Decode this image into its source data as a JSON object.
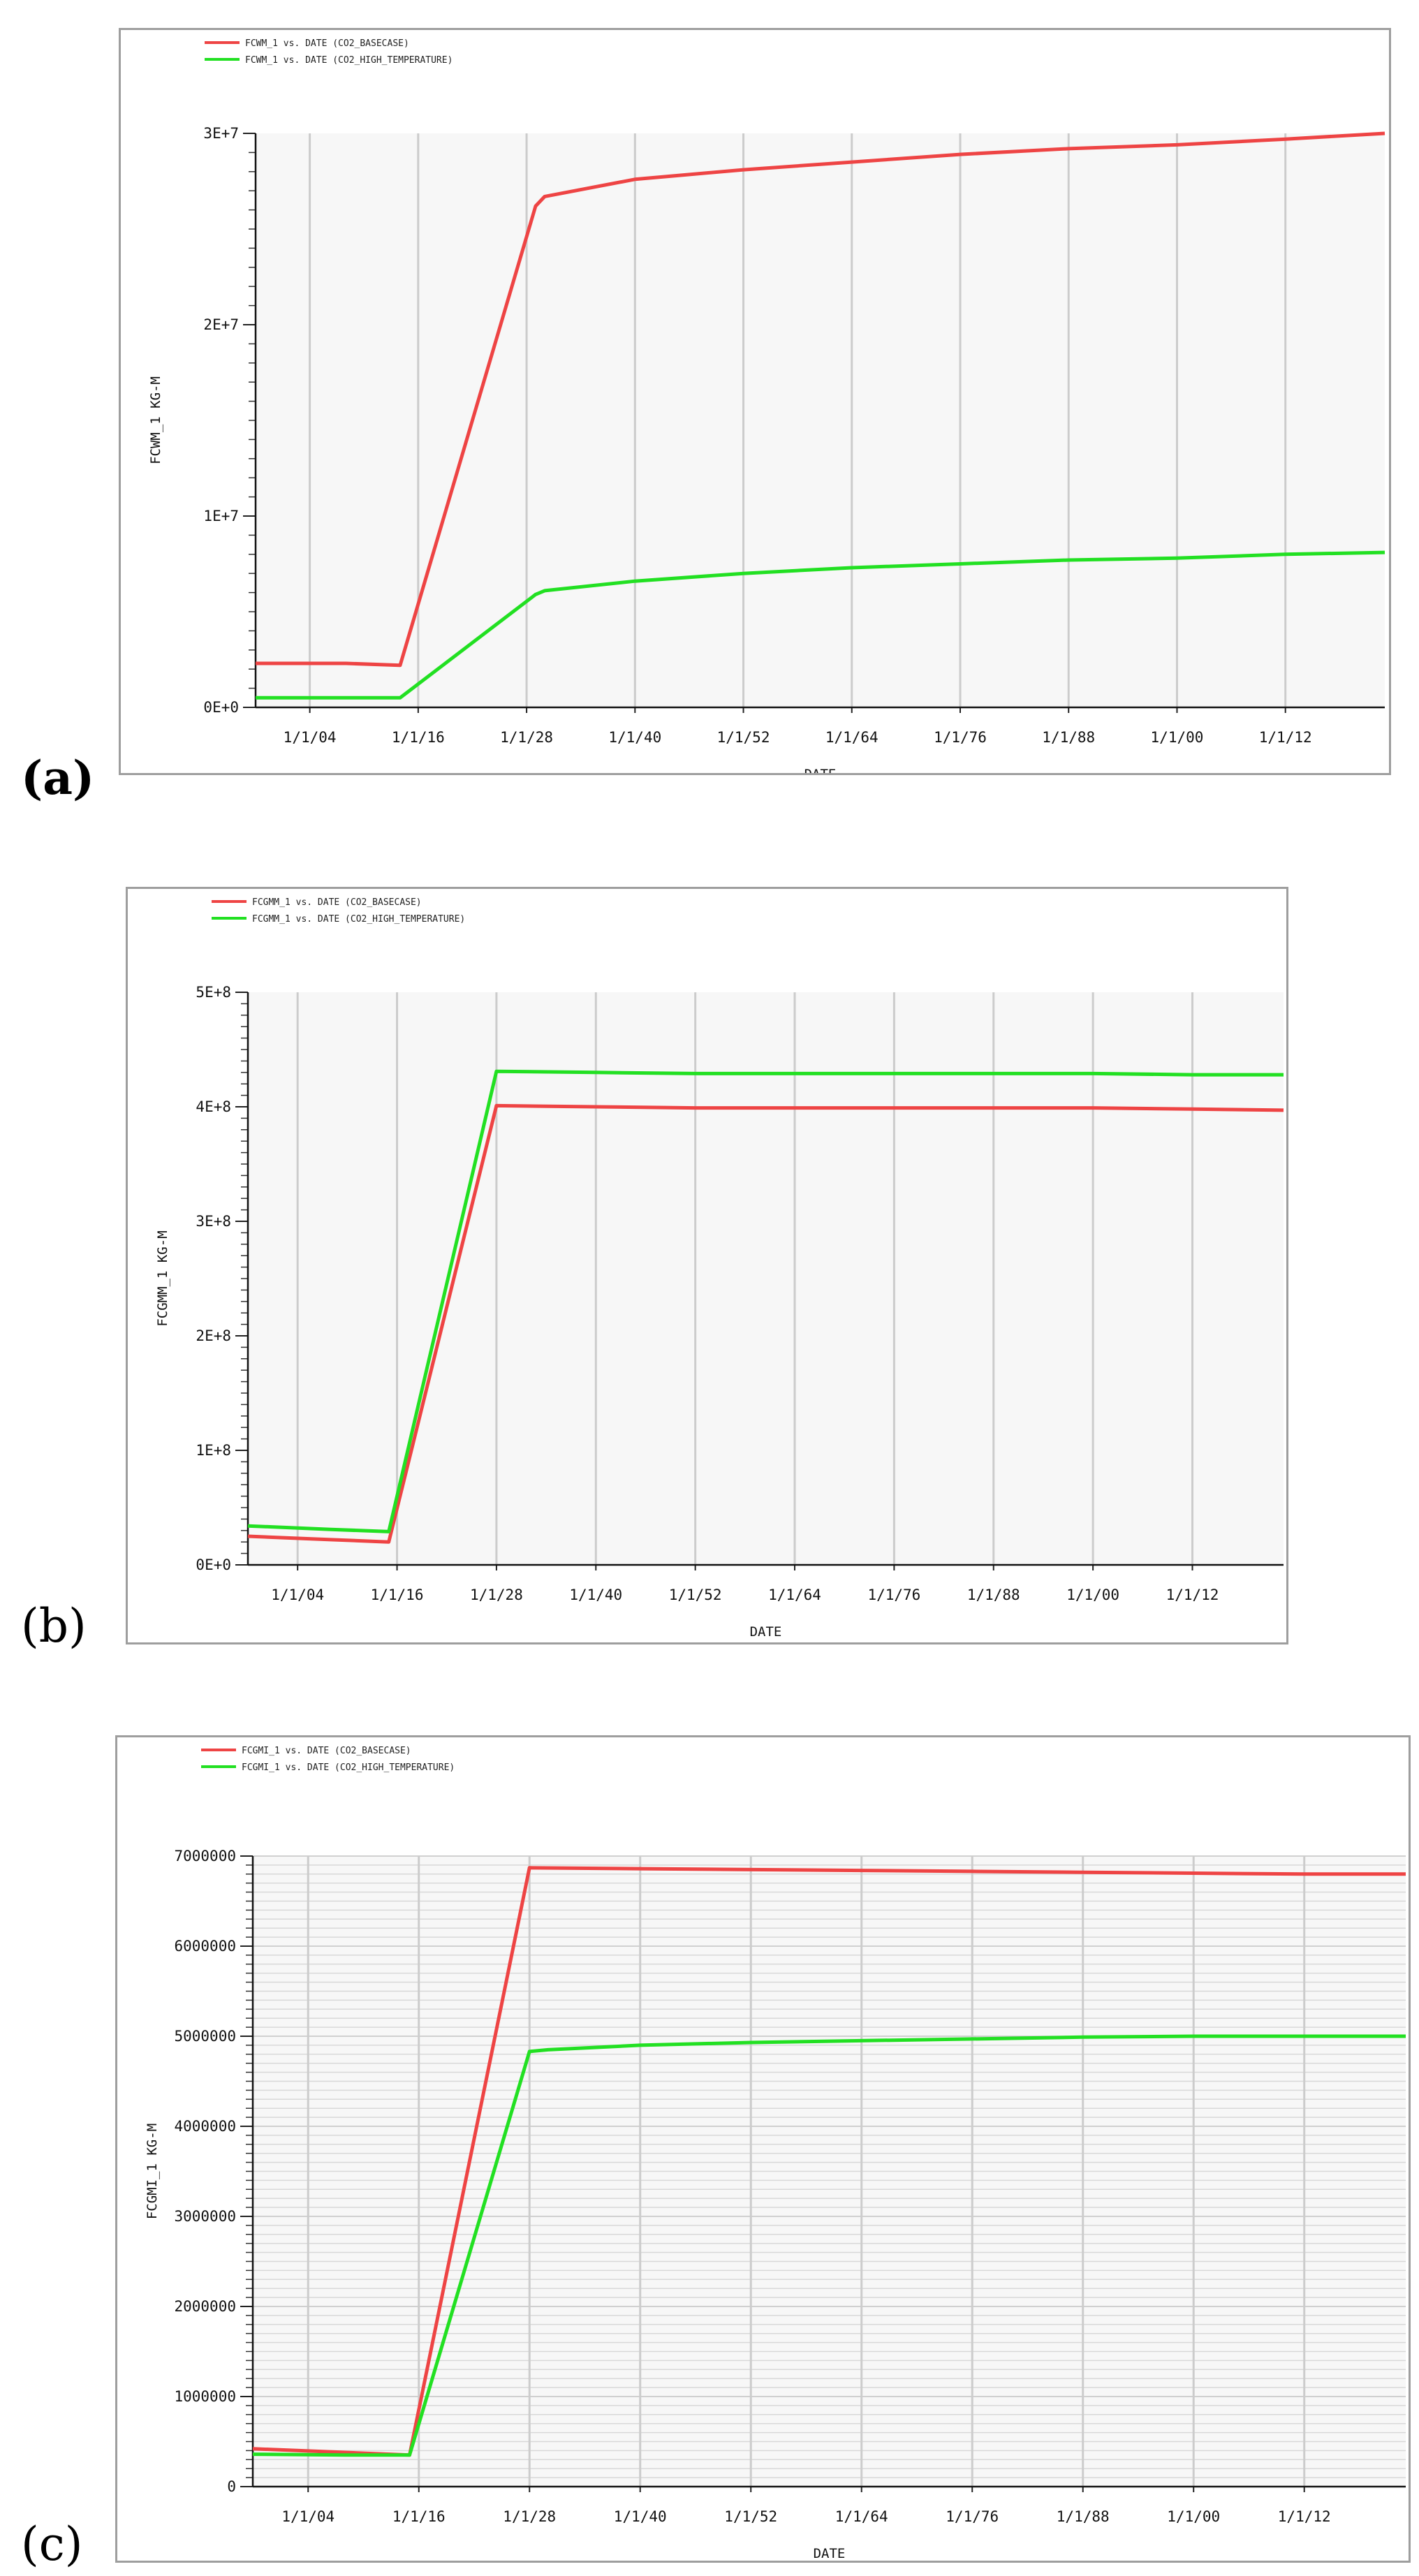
{
  "panel_labels": [
    "(a)",
    "(b)",
    "(c)"
  ],
  "colors": {
    "basecase": "#ee4444",
    "high_temperature": "#22e022",
    "grid": "#cccccc",
    "plot_bg": "#f7f7f7"
  },
  "chart_data": [
    {
      "type": "line",
      "panel": "(a)",
      "legend": [
        "FCWM_1  vs.  DATE (CO2_BASECASE)",
        "FCWM_1  vs.  DATE (CO2_HIGH_TEMPERATURE)"
      ],
      "xlabel": "DATE",
      "ylabel": "FCWM_1   KG-M",
      "x_tick_labels": [
        "1/1/04",
        "1/1/16",
        "1/1/28",
        "1/1/40",
        "1/1/52",
        "1/1/64",
        "1/1/76",
        "1/1/88",
        "1/1/00",
        "1/1/12"
      ],
      "x_ticks": [
        2004,
        2016,
        2028,
        2040,
        2052,
        2064,
        2076,
        2088,
        2100,
        2112
      ],
      "xlim": [
        1998,
        2123
      ],
      "y_tick_labels": [
        "0E+0",
        "1E+7",
        "2E+7",
        "3E+7"
      ],
      "y_ticks": [
        0,
        10000000,
        20000000,
        30000000
      ],
      "ylim": [
        0,
        30000000
      ],
      "grid": "vertical",
      "legend_position": "top-left",
      "series": [
        {
          "name": "FCWM_1  vs.  DATE (CO2_BASECASE)",
          "color": "#ee4444",
          "x": [
            1998,
            2008,
            2014,
            2029,
            2030,
            2040,
            2052,
            2064,
            2076,
            2088,
            2100,
            2112,
            2123
          ],
          "y": [
            2300000,
            2300000,
            2200000,
            26200000,
            26700000,
            27600000,
            28100000,
            28500000,
            28900000,
            29200000,
            29400000,
            29700000,
            30000000
          ]
        },
        {
          "name": "FCWM_1  vs.  DATE (CO2_HIGH_TEMPERATURE)",
          "color": "#22e022",
          "x": [
            1998,
            2008,
            2014,
            2029,
            2030,
            2040,
            2052,
            2064,
            2076,
            2088,
            2100,
            2112,
            2123
          ],
          "y": [
            500000,
            500000,
            500000,
            5900000,
            6100000,
            6600000,
            7000000,
            7300000,
            7500000,
            7700000,
            7800000,
            8000000,
            8100000
          ]
        }
      ]
    },
    {
      "type": "line",
      "panel": "(b)",
      "legend": [
        "FCGMM_1  vs.  DATE (CO2_BASECASE)",
        "FCGMM_1  vs.  DATE (CO2_HIGH_TEMPERATURE)"
      ],
      "xlabel": "DATE",
      "ylabel": "FCGMM_1   KG-M",
      "x_tick_labels": [
        "1/1/04",
        "1/1/16",
        "1/1/28",
        "1/1/40",
        "1/1/52",
        "1/1/64",
        "1/1/76",
        "1/1/88",
        "1/1/00",
        "1/1/12"
      ],
      "x_ticks": [
        2004,
        2016,
        2028,
        2040,
        2052,
        2064,
        2076,
        2088,
        2100,
        2112
      ],
      "xlim": [
        1998,
        2123
      ],
      "y_tick_labels": [
        "0E+0",
        "1E+8",
        "2E+8",
        "3E+8",
        "4E+8",
        "5E+8"
      ],
      "y_ticks": [
        0,
        100000000,
        200000000,
        300000000,
        400000000,
        500000000
      ],
      "ylim": [
        0,
        500000000
      ],
      "grid": "vertical",
      "legend_position": "top-left",
      "series": [
        {
          "name": "FCGMM_1  vs.  DATE (CO2_BASECASE)",
          "color": "#ee4444",
          "x": [
            1998,
            2008,
            2015,
            2028,
            2040,
            2052,
            2064,
            2076,
            2088,
            2100,
            2112,
            2123
          ],
          "y": [
            25000000,
            22000000,
            20000000,
            401000000,
            400000000,
            399000000,
            399000000,
            399000000,
            399000000,
            399000000,
            398000000,
            397000000
          ]
        },
        {
          "name": "FCGMM_1  vs.  DATE (CO2_HIGH_TEMPERATURE)",
          "color": "#22e022",
          "x": [
            1998,
            2008,
            2015,
            2028,
            2040,
            2052,
            2064,
            2076,
            2088,
            2100,
            2112,
            2123
          ],
          "y": [
            34000000,
            31000000,
            29000000,
            431000000,
            430000000,
            429000000,
            429000000,
            429000000,
            429000000,
            429000000,
            428000000,
            428000000
          ]
        }
      ]
    },
    {
      "type": "line",
      "panel": "(c)",
      "legend": [
        "FCGMI_1  vs.  DATE (CO2_BASECASE)",
        "FCGMI_1  vs.  DATE (CO2_HIGH_TEMPERATURE)"
      ],
      "xlabel": "DATE",
      "ylabel": "FCGMI_1   KG-M",
      "x_tick_labels": [
        "1/1/04",
        "1/1/16",
        "1/1/28",
        "1/1/40",
        "1/1/52",
        "1/1/64",
        "1/1/76",
        "1/1/88",
        "1/1/00",
        "1/1/12"
      ],
      "x_ticks": [
        2004,
        2016,
        2028,
        2040,
        2052,
        2064,
        2076,
        2088,
        2100,
        2112
      ],
      "xlim": [
        1998,
        2123
      ],
      "y_tick_labels": [
        "0",
        "1000000",
        "2000000",
        "3000000",
        "4000000",
        "5000000",
        "6000000",
        "7000000"
      ],
      "y_ticks": [
        0,
        1000000,
        2000000,
        3000000,
        4000000,
        5000000,
        6000000,
        7000000
      ],
      "ylim": [
        0,
        7000000
      ],
      "grid": "both",
      "legend_position": "top-left",
      "series": [
        {
          "name": "FCGMI_1  vs.  DATE (CO2_BASECASE)",
          "color": "#ee4444",
          "x": [
            1998,
            2008,
            2015,
            2028,
            2040,
            2052,
            2064,
            2076,
            2088,
            2100,
            2112,
            2123
          ],
          "y": [
            420000,
            380000,
            350000,
            6870000,
            6860000,
            6850000,
            6840000,
            6830000,
            6820000,
            6810000,
            6800000,
            6800000
          ]
        },
        {
          "name": "FCGMI_1  vs.  DATE (CO2_HIGH_TEMPERATURE)",
          "color": "#22e022",
          "x": [
            1998,
            2008,
            2015,
            2028,
            2030,
            2040,
            2052,
            2064,
            2076,
            2088,
            2100,
            2112,
            2123
          ],
          "y": [
            360000,
            350000,
            350000,
            4830000,
            4850000,
            4900000,
            4930000,
            4950000,
            4970000,
            4990000,
            5000000,
            5000000,
            5000000
          ]
        }
      ]
    }
  ]
}
